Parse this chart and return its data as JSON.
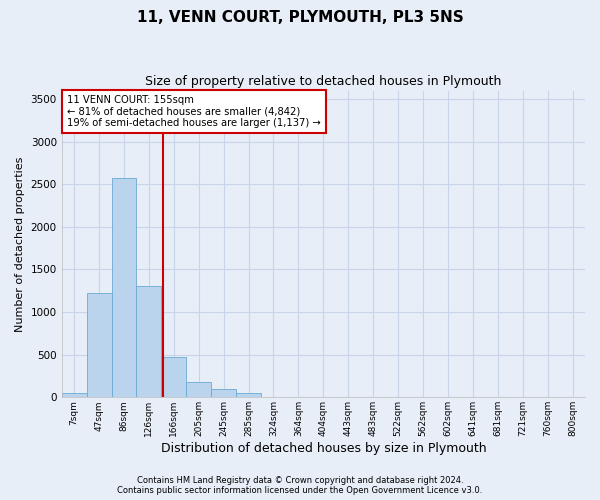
{
  "title": "11, VENN COURT, PLYMOUTH, PL3 5NS",
  "subtitle": "Size of property relative to detached houses in Plymouth",
  "xlabel": "Distribution of detached houses by size in Plymouth",
  "ylabel": "Number of detached properties",
  "footnote1": "Contains HM Land Registry data © Crown copyright and database right 2024.",
  "footnote2": "Contains public sector information licensed under the Open Government Licence v3.0.",
  "categories": [
    "7sqm",
    "47sqm",
    "86sqm",
    "126sqm",
    "166sqm",
    "205sqm",
    "245sqm",
    "285sqm",
    "324sqm",
    "364sqm",
    "404sqm",
    "443sqm",
    "483sqm",
    "522sqm",
    "562sqm",
    "602sqm",
    "641sqm",
    "681sqm",
    "721sqm",
    "760sqm",
    "800sqm"
  ],
  "values": [
    50,
    1220,
    2570,
    1310,
    470,
    185,
    100,
    45,
    0,
    0,
    0,
    0,
    0,
    0,
    0,
    0,
    0,
    0,
    0,
    0,
    0
  ],
  "bar_color": "#bad4ee",
  "bar_edge_color": "#6aaad4",
  "grid_color": "#c8d4e8",
  "background_color": "#e8eef8",
  "annotation_line1": "11 VENN COURT: 155sqm",
  "annotation_line2": "← 81% of detached houses are smaller (4,842)",
  "annotation_line3": "19% of semi-detached houses are larger (1,137) →",
  "vline_x_index": 3.55,
  "vline_color": "#cc0000",
  "annotation_box_color": "#ffffff",
  "annotation_box_edge_color": "#cc0000",
  "ylim": [
    0,
    3600
  ],
  "yticks": [
    0,
    500,
    1000,
    1500,
    2000,
    2500,
    3000,
    3500
  ],
  "title_fontsize": 11,
  "subtitle_fontsize": 9,
  "ylabel_fontsize": 8,
  "xlabel_fontsize": 9
}
